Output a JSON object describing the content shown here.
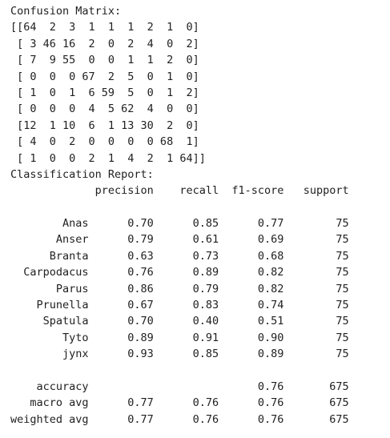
{
  "confusion_title": "Confusion Matrix:",
  "confusion_matrix": [
    [
      64,
      2,
      3,
      1,
      1,
      1,
      2,
      1,
      0
    ],
    [
      3,
      46,
      16,
      2,
      0,
      2,
      4,
      0,
      2
    ],
    [
      7,
      9,
      55,
      0,
      0,
      1,
      1,
      2,
      0
    ],
    [
      0,
      0,
      0,
      67,
      2,
      5,
      0,
      1,
      0
    ],
    [
      1,
      0,
      1,
      6,
      59,
      5,
      0,
      1,
      2
    ],
    [
      0,
      0,
      0,
      4,
      5,
      62,
      4,
      0,
      0
    ],
    [
      12,
      1,
      10,
      6,
      1,
      13,
      30,
      2,
      0
    ],
    [
      4,
      0,
      2,
      0,
      0,
      0,
      0,
      68,
      1
    ],
    [
      1,
      0,
      0,
      2,
      1,
      4,
      2,
      1,
      64
    ]
  ],
  "report_title": "Classification Report:",
  "report_headers": [
    "precision",
    "recall",
    "f1-score",
    "support"
  ],
  "report_rows": [
    {
      "label": "Anas",
      "precision": "0.70",
      "recall": "0.85",
      "f1": "0.77",
      "support": "75"
    },
    {
      "label": "Anser",
      "precision": "0.79",
      "recall": "0.61",
      "f1": "0.69",
      "support": "75"
    },
    {
      "label": "Branta",
      "precision": "0.63",
      "recall": "0.73",
      "f1": "0.68",
      "support": "75"
    },
    {
      "label": "Carpodacus",
      "precision": "0.76",
      "recall": "0.89",
      "f1": "0.82",
      "support": "75"
    },
    {
      "label": "Parus",
      "precision": "0.86",
      "recall": "0.79",
      "f1": "0.82",
      "support": "75"
    },
    {
      "label": "Prunella",
      "precision": "0.67",
      "recall": "0.83",
      "f1": "0.74",
      "support": "75"
    },
    {
      "label": "Spatula",
      "precision": "0.70",
      "recall": "0.40",
      "f1": "0.51",
      "support": "75"
    },
    {
      "label": "Tyto",
      "precision": "0.89",
      "recall": "0.91",
      "f1": "0.90",
      "support": "75"
    },
    {
      "label": "jynx",
      "precision": "0.93",
      "recall": "0.85",
      "f1": "0.89",
      "support": "75"
    }
  ],
  "report_summary": [
    {
      "label": "accuracy",
      "precision": "",
      "recall": "",
      "f1": "0.76",
      "support": "675"
    },
    {
      "label": "macro avg",
      "precision": "0.77",
      "recall": "0.76",
      "f1": "0.76",
      "support": "675"
    },
    {
      "label": "weighted avg",
      "precision": "0.77",
      "recall": "0.76",
      "f1": "0.76",
      "support": "675"
    }
  ]
}
